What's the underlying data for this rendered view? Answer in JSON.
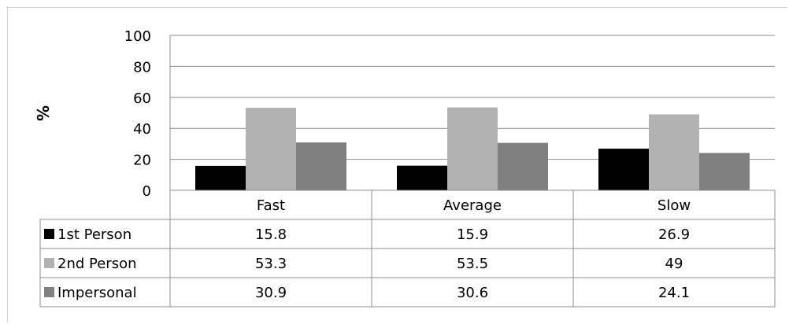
{
  "chart_data": {
    "type": "bar",
    "title": "",
    "xlabel": "",
    "ylabel": "%",
    "ylim": [
      0,
      100
    ],
    "yticks": [
      0,
      20,
      40,
      60,
      80,
      100
    ],
    "grid": true,
    "legend_placement": "data-table",
    "categories": [
      "Fast",
      "Average",
      "Slow"
    ],
    "series": [
      {
        "name": "1st Person",
        "values": [
          15.8,
          15.9,
          26.9
        ],
        "color": "#000000"
      },
      {
        "name": "2nd Person",
        "values": [
          53.3,
          53.5,
          49
        ],
        "color": "#b2b2b2"
      },
      {
        "name": "Impersonal",
        "values": [
          30.9,
          30.6,
          24.1
        ],
        "color": "#808080"
      }
    ]
  }
}
